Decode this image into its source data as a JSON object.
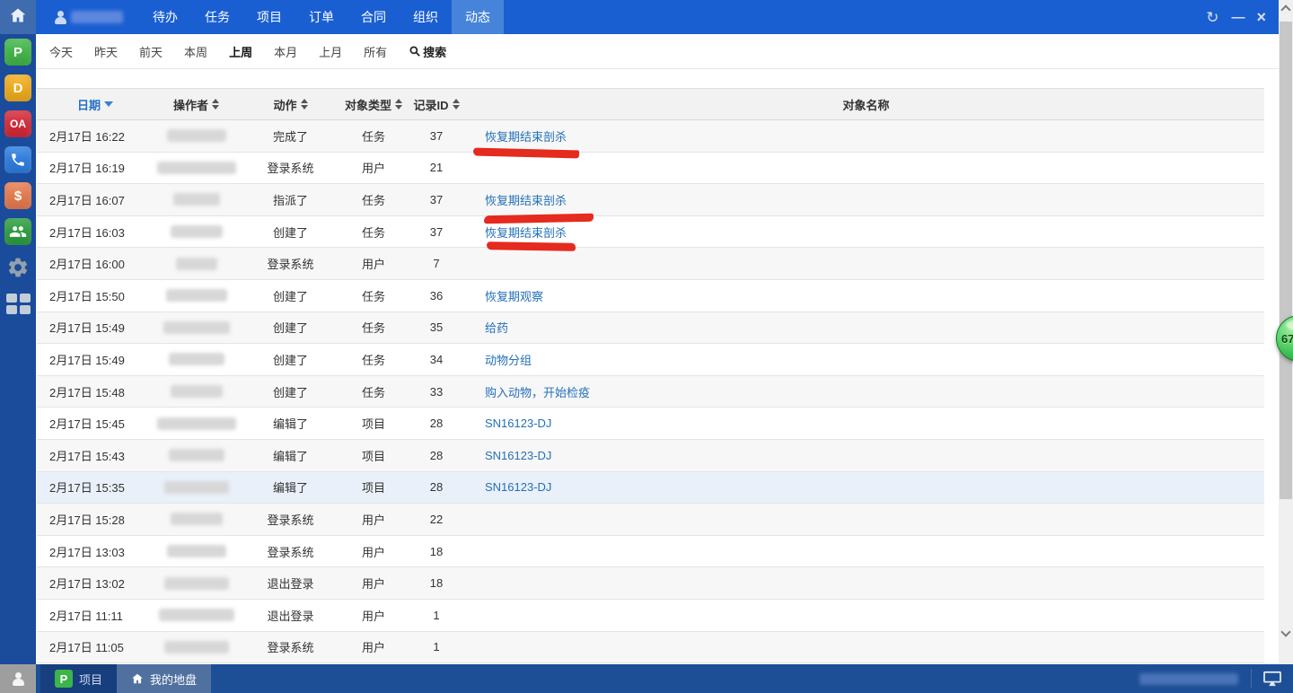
{
  "colors": {
    "navbar_blue": "#1a5fd2",
    "active_tab_blue": "#4684da",
    "sidebar_navy": "#1b4b9b",
    "taskbar_navy": "#1d4f97",
    "link_blue": "#2470b8",
    "sorted_header_blue": "#2470c8",
    "marker_red": "#e52a1f",
    "row_stripe": "#f7f7f7",
    "row_highlight": "#e9f0f9",
    "badge_green": "#23a33c"
  },
  "navbar": {
    "home_icon": "home-icon",
    "user": {
      "icon": "person-icon",
      "name_redacted": true
    },
    "items": [
      {
        "label": "待办",
        "active": false
      },
      {
        "label": "任务",
        "active": false
      },
      {
        "label": "项目",
        "active": false
      },
      {
        "label": "订单",
        "active": false
      },
      {
        "label": "合同",
        "active": false
      },
      {
        "label": "组织",
        "active": false
      },
      {
        "label": "动态",
        "active": true
      }
    ],
    "window_controls": {
      "refresh": "↻",
      "minimize": "—",
      "close": "×"
    }
  },
  "sidebar": {
    "apps": [
      {
        "name": "app-p",
        "label": "P",
        "color": "#43b649",
        "type": "badge"
      },
      {
        "name": "app-d",
        "label": "D",
        "color": "#f0ad1e",
        "type": "badge"
      },
      {
        "name": "app-oa",
        "label": "OA",
        "color": "#d42a39",
        "type": "badge",
        "font_small": true
      },
      {
        "name": "app-phone",
        "icon": "phone-icon",
        "color": "#2f7ee0",
        "type": "icon"
      },
      {
        "name": "app-cash",
        "label": "$",
        "color": "#e77c50",
        "type": "badge"
      },
      {
        "name": "app-team",
        "icon": "people-icon",
        "color": "#2e9e41",
        "type": "icon"
      },
      {
        "name": "app-settings",
        "icon": "gear-icon",
        "type": "plain"
      },
      {
        "name": "app-grid",
        "icon": "grid-icon",
        "type": "plain"
      }
    ]
  },
  "filterbar": {
    "items": [
      "今天",
      "昨天",
      "前天",
      "本周",
      "上周",
      "本月",
      "上月",
      "所有"
    ],
    "active": "上周",
    "search_label": "搜索",
    "search_icon": "magnifier-icon"
  },
  "table": {
    "columns": [
      {
        "label": "日期",
        "sorted": "desc"
      },
      {
        "label": "操作者",
        "sortable": true
      },
      {
        "label": "动作",
        "sortable": true
      },
      {
        "label": "对象类型",
        "sortable": true
      },
      {
        "label": "记录ID",
        "sortable": true
      },
      {
        "label": "对象名称",
        "sortable": false
      }
    ],
    "rows": [
      {
        "date": "2月17日 16:22",
        "operator_redacted": true,
        "action": "完成了",
        "type": "任务",
        "id": "37",
        "object": "恢复期结束剖杀",
        "link": true,
        "marked": true
      },
      {
        "date": "2月17日 16:19",
        "operator_redacted": true,
        "action": "登录系统",
        "type": "用户",
        "id": "21",
        "object": "",
        "link": false,
        "marked": false
      },
      {
        "date": "2月17日 16:07",
        "operator_redacted": true,
        "action": "指派了",
        "type": "任务",
        "id": "37",
        "object": "恢复期结束剖杀",
        "link": true,
        "marked": true
      },
      {
        "date": "2月17日 16:03",
        "operator_redacted": true,
        "action": "创建了",
        "type": "任务",
        "id": "37",
        "object": "恢复期结束剖杀",
        "link": true,
        "marked": true
      },
      {
        "date": "2月17日 16:00",
        "operator_redacted": true,
        "action": "登录系统",
        "type": "用户",
        "id": "7",
        "object": "",
        "link": false,
        "marked": false
      },
      {
        "date": "2月17日 15:50",
        "operator_redacted": true,
        "action": "创建了",
        "type": "任务",
        "id": "36",
        "object": "恢复期观察",
        "link": true,
        "marked": false
      },
      {
        "date": "2月17日 15:49",
        "operator_redacted": true,
        "action": "创建了",
        "type": "任务",
        "id": "35",
        "object": "给药",
        "link": true,
        "marked": false
      },
      {
        "date": "2月17日 15:49",
        "operator_redacted": true,
        "action": "创建了",
        "type": "任务",
        "id": "34",
        "object": "动物分组",
        "link": true,
        "marked": false
      },
      {
        "date": "2月17日 15:48",
        "operator_redacted": true,
        "action": "创建了",
        "type": "任务",
        "id": "33",
        "object": "购入动物，开始检疫",
        "link": true,
        "marked": false
      },
      {
        "date": "2月17日 15:45",
        "operator_redacted": true,
        "action": "编辑了",
        "type": "项目",
        "id": "28",
        "object": "SN16123-DJ",
        "link": true,
        "marked": false
      },
      {
        "date": "2月17日 15:43",
        "operator_redacted": true,
        "action": "编辑了",
        "type": "项目",
        "id": "28",
        "object": "SN16123-DJ",
        "link": true,
        "marked": false
      },
      {
        "date": "2月17日 15:35",
        "operator_redacted": true,
        "action": "编辑了",
        "type": "项目",
        "id": "28",
        "object": "SN16123-DJ",
        "link": true,
        "marked": false,
        "highlighted": true
      },
      {
        "date": "2月17日 15:28",
        "operator_redacted": true,
        "action": "登录系统",
        "type": "用户",
        "id": "22",
        "object": "",
        "link": false,
        "marked": false
      },
      {
        "date": "2月17日 13:03",
        "operator_redacted": true,
        "action": "登录系统",
        "type": "用户",
        "id": "18",
        "object": "",
        "link": false,
        "marked": false
      },
      {
        "date": "2月17日 13:02",
        "operator_redacted": true,
        "action": "退出登录",
        "type": "用户",
        "id": "18",
        "object": "",
        "link": false,
        "marked": false
      },
      {
        "date": "2月17日 11:11",
        "operator_redacted": true,
        "action": "退出登录",
        "type": "用户",
        "id": "1",
        "object": "",
        "link": false,
        "marked": false
      },
      {
        "date": "2月17日 11:05",
        "operator_redacted": true,
        "action": "登录系统",
        "type": "用户",
        "id": "1",
        "object": "",
        "link": false,
        "marked": false
      }
    ]
  },
  "annotations": {
    "style": "hand-drawn red marker underlines",
    "color": "#e52a1f",
    "marked_object": "恢复期结束剖杀"
  },
  "floating_badge": {
    "value": "67"
  },
  "scrollbar": {
    "orientation": "vertical",
    "up_arrow": true,
    "down_arrow": true
  },
  "taskbar": {
    "user_icon": "person-icon",
    "tasks": [
      {
        "badge": "P",
        "badge_color": "#3bb54a",
        "label": "项目",
        "active": false
      },
      {
        "icon": "home-icon",
        "label": "我的地盘",
        "active": true
      }
    ],
    "right_text_redacted": true,
    "chat_icon": "monitor-icon"
  }
}
